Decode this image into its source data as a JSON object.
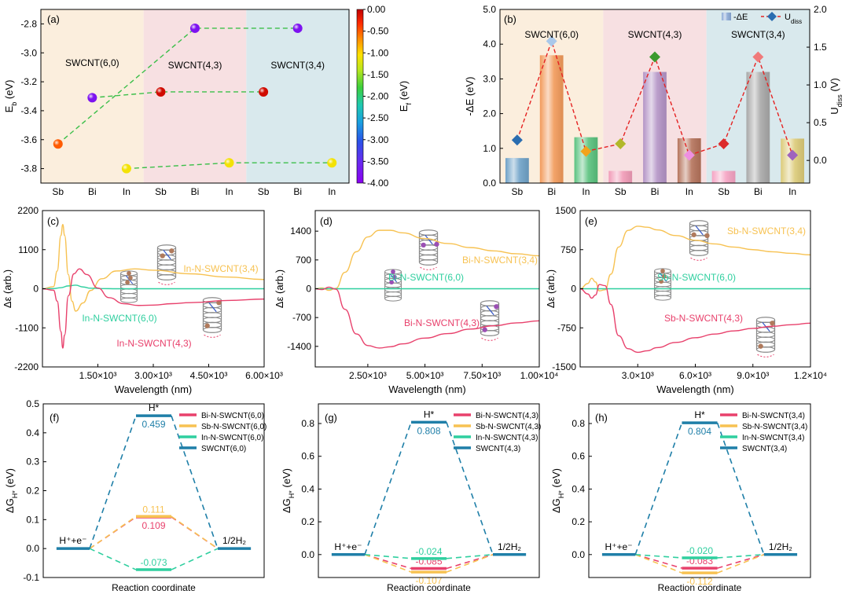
{
  "chart_data": [
    {
      "panel": "a",
      "type": "scatter",
      "label": "(a)",
      "ylabel": "E_b (eV)",
      "ylim": [
        -3.9,
        -2.7
      ],
      "yticks": [
        -3.8,
        -3.6,
        -3.4,
        -3.2,
        -3.0,
        -2.8
      ],
      "categories": [
        "Sb",
        "Bi",
        "In",
        "Sb",
        "Bi",
        "In",
        "Sb",
        "Bi",
        "In"
      ],
      "regions": [
        "SWCNT(6,0)",
        "SWCNT(4,3)",
        "SWCNT(3,4)"
      ],
      "region_colors": [
        "#fbeedd",
        "#f7e0e2",
        "#d9e9ed"
      ],
      "points": [
        {
          "x": 0,
          "y": -3.63,
          "ef": -0.5
        },
        {
          "x": 1,
          "y": -3.31,
          "ef": -3.8
        },
        {
          "x": 2,
          "y": -3.8,
          "ef": -1.1
        },
        {
          "x": 3,
          "y": -3.27,
          "ef": -0.08
        },
        {
          "x": 4,
          "y": -2.83,
          "ef": -3.8
        },
        {
          "x": 5,
          "y": -3.76,
          "ef": -1.1
        },
        {
          "x": 6,
          "y": -3.27,
          "ef": -0.08
        },
        {
          "x": 7,
          "y": -2.83,
          "ef": -3.8
        },
        {
          "x": 8,
          "y": -3.76,
          "ef": -1.1
        }
      ],
      "lines": [
        [
          0,
          4,
          7
        ],
        [
          2,
          5,
          8
        ],
        [
          1,
          3,
          6
        ]
      ],
      "colorbar": {
        "label": "E_f (eV)",
        "range": [
          -4.0,
          0.0
        ],
        "ticks": [
          "0.00",
          "-0.50",
          "-1.00",
          "-1.50",
          "-2.00",
          "-2.50",
          "-3.00",
          "-3.50",
          "-4.00"
        ]
      }
    },
    {
      "panel": "b",
      "type": "bar+line",
      "label": "(b)",
      "ylabel_left": "-ΔE (eV)",
      "ylabel_right": "U_diss (V)",
      "ylim_left": [
        0.0,
        5.0
      ],
      "yticks_left": [
        "0.0",
        "1.0",
        "2.0",
        "3.0",
        "4.0",
        "5.0"
      ],
      "ylim_right": [
        -0.3,
        2.0
      ],
      "yticks_right": [
        "0.0",
        "0.5",
        "1.0",
        "1.5",
        "2.0"
      ],
      "categories": [
        "Sb",
        "Bi",
        "In",
        "Sb",
        "Bi",
        "In",
        "Sb",
        "Bi",
        "In"
      ],
      "regions": [
        "SWCNT(6,0)",
        "SWCNT(4,3)",
        "SWCNT(3,4)"
      ],
      "region_colors": [
        "#fbeedd",
        "#f7e0e2",
        "#d9e9ed"
      ],
      "bar_values": [
        0.72,
        3.68,
        1.32,
        0.35,
        3.2,
        1.29,
        0.35,
        3.2,
        1.28
      ],
      "bar_colors": [
        "#6fa2c8",
        "#f29a5a",
        "#5ac27e",
        "#f19bb7",
        "#b494c6",
        "#b5735b",
        "#f5a3c3",
        "#a8a8a8",
        "#dccb78"
      ],
      "udiss_values": [
        0.27,
        1.58,
        0.12,
        0.22,
        1.37,
        0.07,
        0.22,
        1.37,
        0.07
      ],
      "marker_colors": [
        "#2a6db0",
        "#a9c8ea",
        "#f2a31b",
        "#b2b82a",
        "#3b9a2d",
        "#ee8fe1",
        "#dc2b2b",
        "#f07a7a",
        "#9f63bd"
      ],
      "legend": [
        "-ΔE",
        "U_diss"
      ]
    },
    {
      "panel": "c",
      "type": "line",
      "label": "(c)",
      "xlabel": "Wavelength (nm)",
      "ylabel": "Δε (arb.)",
      "xlim": [
        0,
        6000
      ],
      "xticks": [
        1500,
        3000,
        4500,
        6000
      ],
      "xticklabels": [
        "1.50×10³",
        "3.00×10³",
        "4.50×10³",
        "6.00×10³"
      ],
      "ylim": [
        -2200,
        2200
      ],
      "yticks": [
        -2200,
        -1100,
        0,
        1100,
        2200
      ],
      "series": [
        {
          "name": "In-N-SWCNT(3,4)",
          "color": "#f7c252",
          "x": [
            0,
            300,
            400,
            500,
            550,
            600,
            700,
            800,
            900,
            1100,
            1300,
            1600,
            2000,
            2500,
            3000,
            4000,
            5000,
            6000
          ],
          "y": [
            0,
            60,
            500,
            1500,
            1810,
            1500,
            400,
            -350,
            -630,
            -400,
            -50,
            280,
            500,
            560,
            520,
            420,
            330,
            260
          ]
        },
        {
          "name": "In-N-SWCNT(6,0)",
          "color": "#2fcf9f",
          "x": [
            0,
            300,
            500,
            700,
            900,
            1100,
            1300,
            1600,
            2000,
            6000
          ],
          "y": [
            0,
            5,
            30,
            80,
            100,
            50,
            15,
            5,
            0,
            0
          ]
        },
        {
          "name": "In-N-SWCNT(4,3)",
          "color": "#e8416c",
          "x": [
            0,
            300,
            400,
            500,
            550,
            600,
            700,
            850,
            1000,
            1200,
            1500,
            1800,
            2200,
            2600,
            3000,
            3500,
            4000,
            5000,
            6000
          ],
          "y": [
            0,
            -40,
            -350,
            -1200,
            -1670,
            -1300,
            -200,
            420,
            560,
            400,
            20,
            -250,
            -420,
            -470,
            -460,
            -420,
            -390,
            -330,
            -290
          ]
        }
      ]
    },
    {
      "panel": "d",
      "type": "line",
      "label": "(d)",
      "xlabel": "Wavelength (nm)",
      "ylabel": "Δε (arb.)",
      "xlim": [
        200,
        10000
      ],
      "xticks": [
        2500,
        5000,
        7500,
        10000
      ],
      "xticklabels": [
        "2.50×10³",
        "5.00×10³",
        "7.50×10³",
        "1.00×10⁴"
      ],
      "ylim": [
        -1900,
        1900
      ],
      "yticks": [
        -1400,
        -700,
        0,
        700,
        1400
      ],
      "series": [
        {
          "name": "Bi-N-SWCNT(3,4)",
          "color": "#f7c252",
          "x": [
            200,
            500,
            800,
            1100,
            1500,
            2000,
            2500,
            3000,
            3500,
            4000,
            5000,
            6000,
            7000,
            8000,
            9000,
            10000
          ],
          "y": [
            0,
            20,
            -40,
            10,
            400,
            900,
            1260,
            1420,
            1420,
            1360,
            1220,
            1100,
            1000,
            920,
            850,
            800
          ]
        },
        {
          "name": "Bi-N-SWCNT(6,0)",
          "color": "#2fcf9f",
          "x": [
            200,
            10000
          ],
          "y": [
            0,
            0
          ]
        },
        {
          "name": "Bi-N-SWCNT(4,3)",
          "color": "#e8416c",
          "x": [
            200,
            500,
            800,
            1100,
            1500,
            2000,
            2500,
            3000,
            3500,
            4000,
            5000,
            6000,
            7000,
            8000,
            9000,
            10000
          ],
          "y": [
            0,
            -20,
            40,
            -10,
            -500,
            -1100,
            -1380,
            -1440,
            -1410,
            -1340,
            -1200,
            -1090,
            -980,
            -900,
            -830,
            -780
          ]
        }
      ]
    },
    {
      "panel": "e",
      "type": "line",
      "label": "(e)",
      "xlabel": "Wavelength (nm)",
      "ylabel": "Δε (arb.)",
      "xlim": [
        0,
        12000
      ],
      "xticks": [
        3000,
        6000,
        9000,
        12000
      ],
      "xticklabels": [
        "3.0×10³",
        "6.0×10³",
        "9.0×10³",
        "1.2×10⁴"
      ],
      "ylim": [
        -1500,
        1500
      ],
      "yticks": [
        -1500,
        -750,
        0,
        750,
        1500
      ],
      "series": [
        {
          "name": "Sb-N-SWCNT(3,4)",
          "color": "#f7c252",
          "x": [
            0,
            400,
            600,
            800,
            1000,
            1300,
            1600,
            2000,
            2500,
            3000,
            3500,
            4000,
            5000,
            6000,
            7000,
            8000,
            9000,
            10000,
            11000,
            12000
          ],
          "y": [
            0,
            100,
            200,
            130,
            -40,
            -20,
            280,
            800,
            1120,
            1200,
            1180,
            1130,
            1020,
            930,
            860,
            800,
            750,
            710,
            680,
            650
          ]
        },
        {
          "name": "Sb-N-SWCNT(6,0)",
          "color": "#2fcf9f",
          "x": [
            0,
            12000
          ],
          "y": [
            0,
            0
          ]
        },
        {
          "name": "Sb-N-SWCNT(4,3)",
          "color": "#e8416c",
          "x": [
            0,
            400,
            600,
            800,
            1000,
            1300,
            1600,
            2000,
            2500,
            3000,
            3500,
            4000,
            5000,
            6000,
            7000,
            8000,
            9000,
            10000,
            11000,
            12000
          ],
          "y": [
            0,
            -100,
            -180,
            -120,
            80,
            60,
            -300,
            -900,
            -1150,
            -1220,
            -1190,
            -1130,
            -1030,
            -940,
            -870,
            -810,
            -760,
            -720,
            -690,
            -660
          ]
        }
      ]
    },
    {
      "panel": "f",
      "type": "free-energy-diagram",
      "label": "(f)",
      "xlabel": "Reaction coordinate",
      "ylabel": "ΔG_H* (eV)",
      "ylim": [
        -0.1,
        0.5
      ],
      "yticks": [
        "-0.1",
        "0.0",
        "0.1",
        "0.2",
        "0.3",
        "0.4",
        "0.5"
      ],
      "states": [
        "H⁺+e⁻",
        "H*",
        "1/2H₂"
      ],
      "series": [
        {
          "name": "Bi-N-SWCNT(6,0)",
          "color": "#e8416c",
          "value": 0.109,
          "label": "0.109",
          "label_pos": "below"
        },
        {
          "name": "Sb-N-SWCNT(6,0)",
          "color": "#f7c252",
          "value": 0.111,
          "label": "0.111",
          "label_pos": "above"
        },
        {
          "name": "In-N-SWCNT(6,0)",
          "color": "#2fcf9f",
          "value": -0.073,
          "label": "-0.073",
          "label_pos": "above"
        },
        {
          "name": "SWCNT(6,0)",
          "color": "#1f7fa8",
          "value": 0.459,
          "label": "0.459",
          "label_pos": "below"
        }
      ]
    },
    {
      "panel": "g",
      "type": "free-energy-diagram",
      "label": "(g)",
      "xlabel": "Reaction coordinate",
      "ylabel": "ΔG_H* (eV)",
      "ylim": [
        -0.14,
        0.92
      ],
      "yticks": [
        "0.0",
        "0.2",
        "0.4",
        "0.6",
        "0.8"
      ],
      "states": [
        "H⁺+e⁻",
        "H*",
        "1/2H₂"
      ],
      "series": [
        {
          "name": "Bi-N-SWCNT(4,3)",
          "color": "#e8416c",
          "value": -0.085,
          "label": "-0.085",
          "label_pos": "above"
        },
        {
          "name": "Sb-N-SWCNT(4,3)",
          "color": "#f7c252",
          "value": -0.107,
          "label": "-0.107",
          "label_pos": "below"
        },
        {
          "name": "In-N-SWCNT(4,3)",
          "color": "#2fcf9f",
          "value": -0.024,
          "label": "-0.024",
          "label_pos": "above"
        },
        {
          "name": "SWCNT(4,3)",
          "color": "#1f7fa8",
          "value": 0.808,
          "label": "0.808",
          "label_pos": "below"
        }
      ]
    },
    {
      "panel": "h",
      "type": "free-energy-diagram",
      "label": "(h)",
      "xlabel": "Reaction coordinate",
      "ylabel": "ΔG_H* (eV)",
      "ylim": [
        -0.14,
        0.92
      ],
      "yticks": [
        "0.0",
        "0.2",
        "0.4",
        "0.6",
        "0.8"
      ],
      "states": [
        "H⁺+e⁻",
        "H*",
        "1/2H₂"
      ],
      "series": [
        {
          "name": "Bi-N-SWCNT(3,4)",
          "color": "#e8416c",
          "value": -0.083,
          "label": "-0.083",
          "label_pos": "above"
        },
        {
          "name": "Sb-N-SWCNT(3,4)",
          "color": "#f7c252",
          "value": -0.112,
          "label": "-0.112",
          "label_pos": "below"
        },
        {
          "name": "In-N-SWCNT(3,4)",
          "color": "#2fcf9f",
          "value": -0.02,
          "label": "-0.020",
          "label_pos": "above"
        },
        {
          "name": "SWCNT(3,4)",
          "color": "#1f7fa8",
          "value": 0.804,
          "label": "0.804",
          "label_pos": "below"
        }
      ]
    }
  ]
}
